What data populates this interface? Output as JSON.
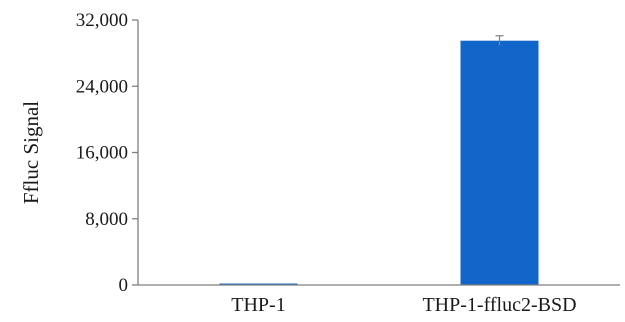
{
  "chart_data": {
    "type": "bar",
    "categories": [
      "THP-1",
      "THP-1-ffluc2-BSD"
    ],
    "series": [
      {
        "values": [
          180,
          29500
        ],
        "error": [
          0,
          600
        ]
      }
    ],
    "ylabel": "Ffluc Signal",
    "ylim": [
      0,
      32000
    ],
    "yticks": [
      0,
      8000,
      16000,
      24000,
      32000
    ],
    "ytick_labels": [
      "0",
      "8,000",
      "16,000",
      "24,000",
      "32,000"
    ],
    "grid": false,
    "legend": "none",
    "colors": {
      "bar": "#1366c9",
      "axis": "#7f7f7f",
      "error": "#7f7f7f"
    }
  }
}
